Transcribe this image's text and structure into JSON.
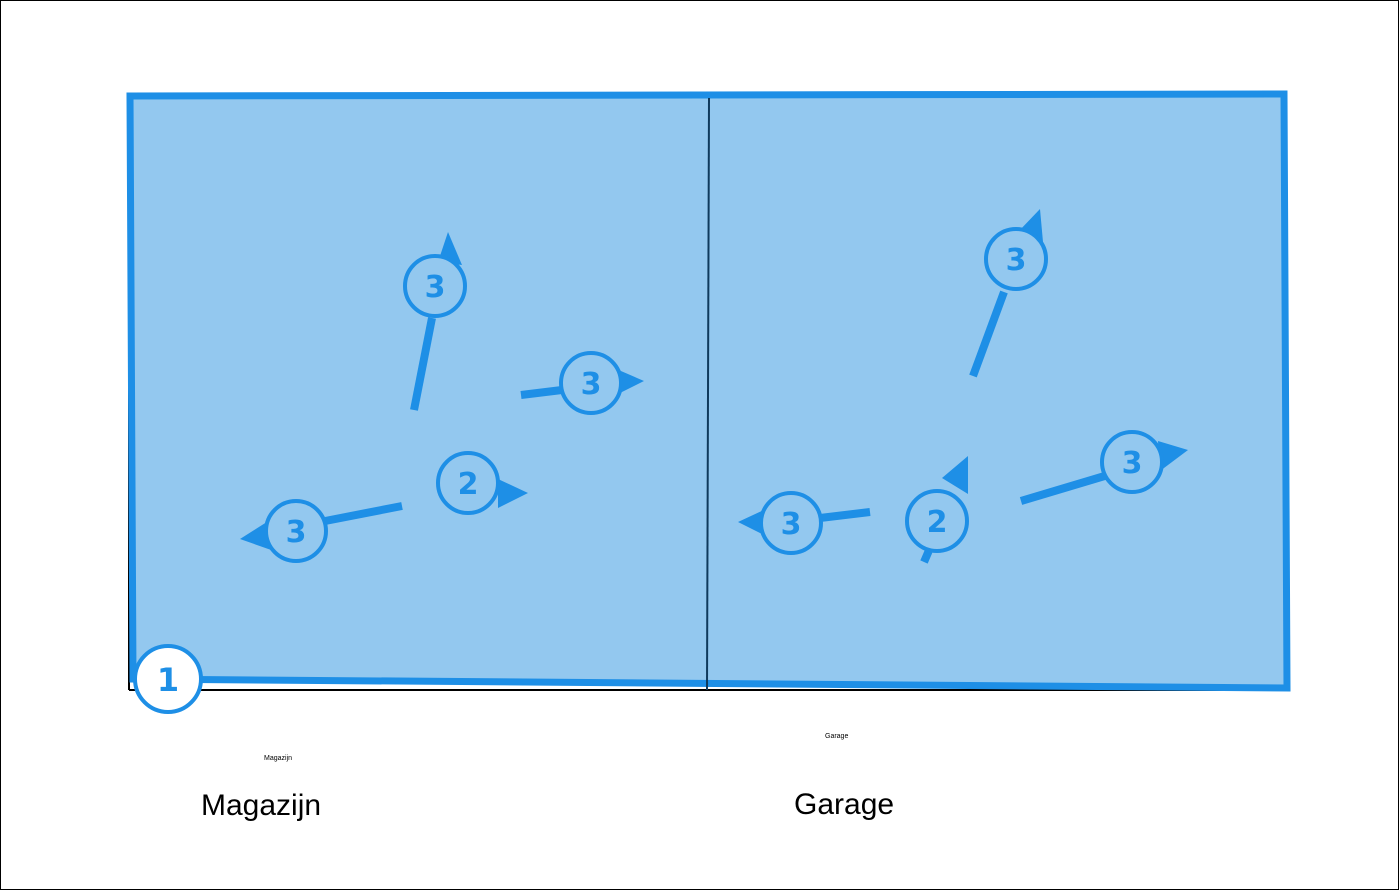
{
  "rooms": {
    "left": {
      "name": "Magazijn",
      "name_small": "Magazijn"
    },
    "right": {
      "name": "Garage",
      "name_small": "Garage"
    }
  },
  "markers": {
    "corner": "1",
    "left_group": [
      "3",
      "3",
      "2",
      "3"
    ],
    "right_group": [
      "3",
      "3",
      "3",
      "2"
    ]
  },
  "colors": {
    "accent": "#1e8fe6",
    "fill": "#93c8ef",
    "divider": "#0f3a5c",
    "badge_bg": "#93c8ef",
    "badge_text": "#1e8fe6"
  },
  "icons": {
    "marker": "numbered-circle-icon",
    "direction": "arrow-icon"
  }
}
